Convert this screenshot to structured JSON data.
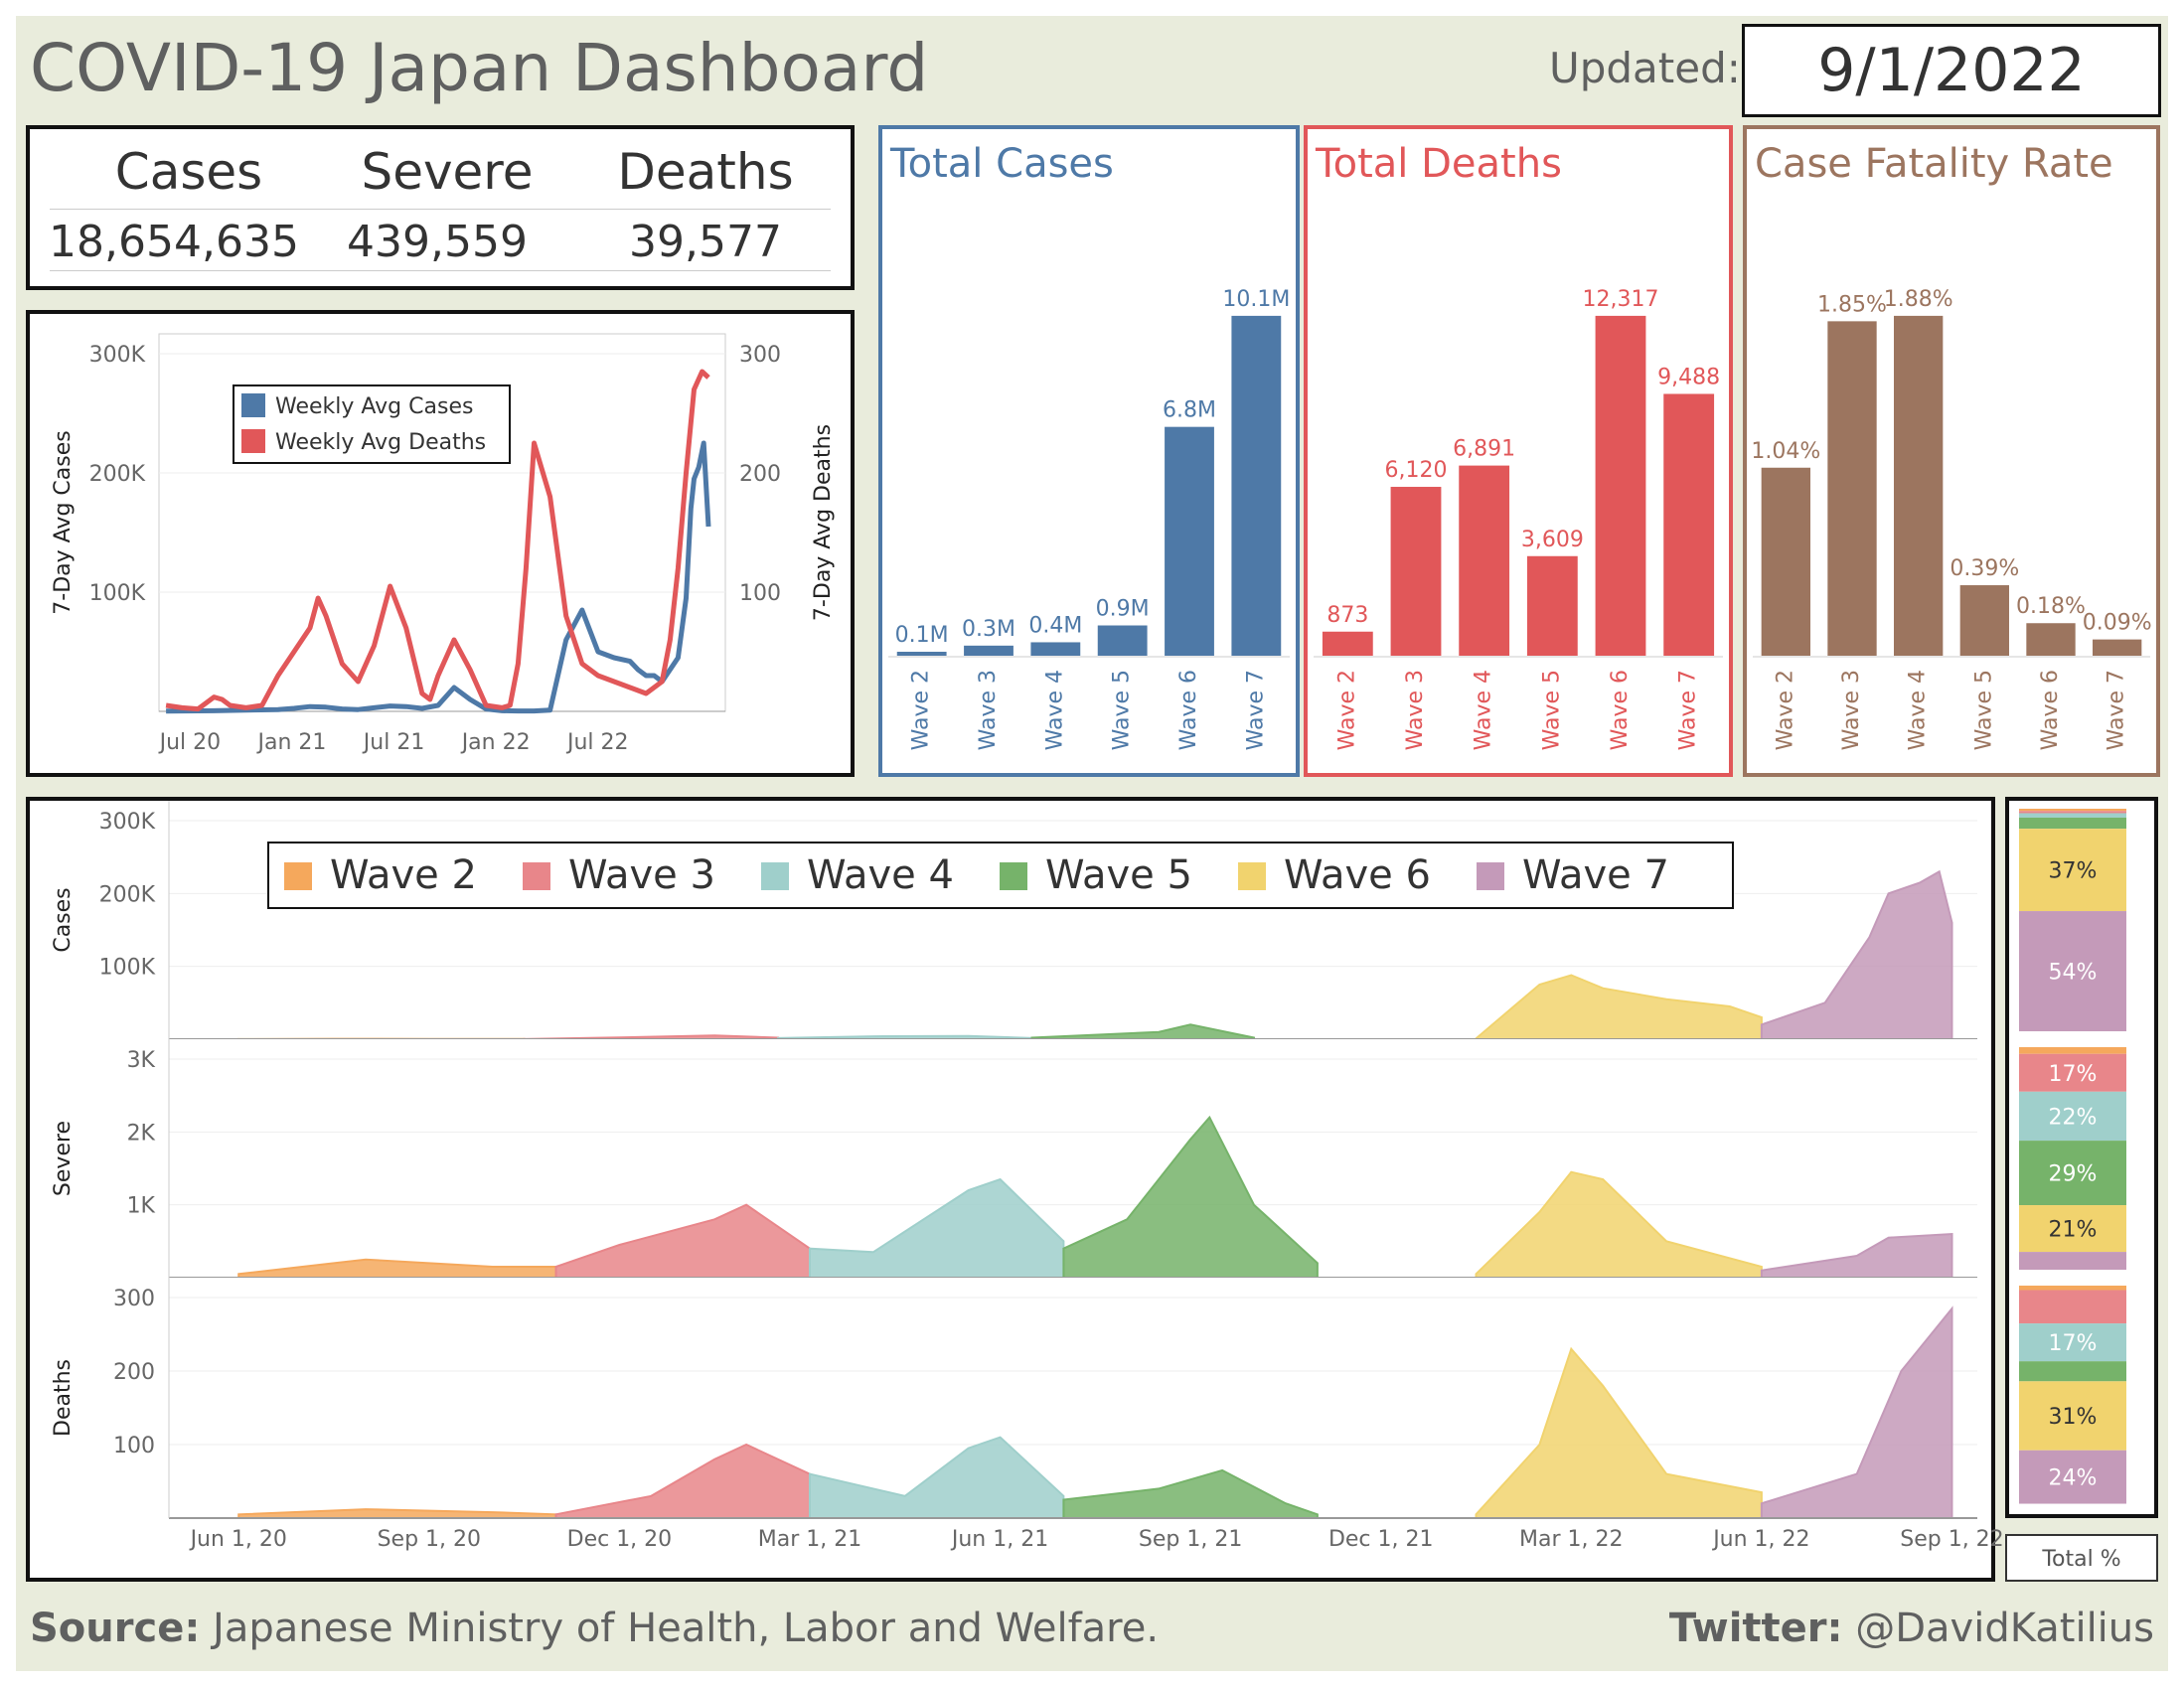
{
  "header": {
    "title": "COVID-19 Japan Dashboard",
    "updated_label": "Updated:",
    "updated_date": "9/1/2022"
  },
  "kpis": [
    {
      "label": "Cases",
      "value": "18,654,635"
    },
    {
      "label": "Severe",
      "value": "439,559"
    },
    {
      "label": "Deaths",
      "value": "39,577"
    }
  ],
  "colors": {
    "cases_blue": "#4e79a7",
    "deaths_red": "#e15759",
    "cfr_brown": "#9c755f",
    "background": "#e9ecdc",
    "wave2": "#f5a85c",
    "wave3": "#e8868a",
    "wave4": "#9fcfcb",
    "wave5": "#76b36a",
    "wave6": "#f1d36e",
    "wave7": "#c49ab9"
  },
  "chart_data": [
    {
      "id": "weekly-avg",
      "type": "line",
      "ylabel": "7-Day Avg Cases",
      "y2label": "7-Day Avg Deaths",
      "x_ticks": [
        "Jul 20",
        "Jan 21",
        "Jul 21",
        "Jan 22",
        "Jul 22"
      ],
      "y_ticks": [
        "100K",
        "200K",
        "300K"
      ],
      "y2_ticks": [
        "100",
        "200",
        "300"
      ],
      "ylim": [
        0,
        300000
      ],
      "y2lim": [
        0,
        300
      ],
      "legend": "top-left",
      "series": [
        {
          "name": "Weekly Avg Cases",
          "axis": "left",
          "color": "#4e79a7",
          "x_month_index": [
            0,
            3,
            5,
            7,
            8,
            9,
            10,
            11,
            12,
            13,
            14,
            15,
            16,
            17,
            18,
            19,
            20,
            21,
            22,
            23,
            24,
            25,
            26,
            27,
            28,
            29,
            29.5,
            30,
            30.5,
            31,
            32,
            32.5,
            32.8,
            33,
            33.3,
            33.6,
            33.9
          ],
          "values": [
            200,
            500,
            1000,
            1500,
            2500,
            4000,
            3500,
            2000,
            1500,
            3000,
            4500,
            4000,
            2500,
            5000,
            20000,
            10000,
            2000,
            500,
            300,
            300,
            1000,
            60000,
            85000,
            50000,
            45000,
            42000,
            35000,
            30000,
            30000,
            25000,
            45000,
            95000,
            170000,
            195000,
            205000,
            225000,
            155000
          ]
        },
        {
          "name": "Weekly Avg Deaths",
          "axis": "right",
          "color": "#e15759",
          "x_month_index": [
            0,
            1,
            2,
            3,
            3.5,
            4,
            5,
            6,
            7,
            8,
            9,
            9.5,
            10,
            11,
            12,
            13,
            14,
            15,
            16,
            16.5,
            17,
            18,
            19,
            20,
            21,
            21.5,
            22,
            22.5,
            23,
            24,
            25,
            26,
            27,
            28,
            29,
            30,
            31,
            31.5,
            32,
            32.5,
            33,
            33.5,
            33.9
          ],
          "values": [
            5,
            3,
            2,
            12,
            10,
            5,
            3,
            5,
            30,
            50,
            70,
            95,
            80,
            40,
            25,
            55,
            105,
            70,
            15,
            10,
            30,
            60,
            35,
            5,
            3,
            5,
            40,
            120,
            225,
            180,
            80,
            40,
            30,
            25,
            20,
            15,
            25,
            60,
            120,
            200,
            270,
            285,
            280
          ]
        }
      ]
    },
    {
      "id": "total-cases",
      "type": "bar",
      "title": "Total Cases",
      "categories": [
        "Wave 2",
        "Wave 3",
        "Wave 4",
        "Wave 5",
        "Wave 6",
        "Wave 7"
      ],
      "values": [
        0.1,
        0.3,
        0.4,
        0.9,
        6.8,
        10.1
      ],
      "data_labels": [
        "0.1M",
        "0.3M",
        "0.4M",
        "0.9M",
        "6.8M",
        "10.1M"
      ],
      "unit": "M",
      "color": "#4e79a7"
    },
    {
      "id": "total-deaths",
      "type": "bar",
      "title": "Total Deaths",
      "categories": [
        "Wave 2",
        "Wave 3",
        "Wave 4",
        "Wave 5",
        "Wave 6",
        "Wave 7"
      ],
      "values": [
        873,
        6120,
        6891,
        3609,
        12317,
        9488
      ],
      "data_labels": [
        "873",
        "6,120",
        "6,891",
        "3,609",
        "12,317",
        "9,488"
      ],
      "color": "#e15759"
    },
    {
      "id": "case-fatality-rate",
      "type": "bar",
      "title": "Case Fatality Rate",
      "categories": [
        "Wave 2",
        "Wave 3",
        "Wave 4",
        "Wave 5",
        "Wave 6",
        "Wave 7"
      ],
      "values": [
        1.04,
        1.85,
        1.88,
        0.39,
        0.18,
        0.09
      ],
      "data_labels": [
        "1.04%",
        "1.85%",
        "1.88%",
        "0.39%",
        "0.18%",
        "0.09%"
      ],
      "unit": "%",
      "color": "#9c755f"
    },
    {
      "id": "waves-area",
      "type": "area",
      "legend": [
        "Wave 2",
        "Wave 3",
        "Wave 4",
        "Wave 5",
        "Wave 6",
        "Wave 7"
      ],
      "legend_placement": "top",
      "x_ticks": [
        "Jun 1, 20",
        "Sep 1, 20",
        "Dec 1, 20",
        "Mar 1, 21",
        "Jun 1, 21",
        "Sep 1, 21",
        "Dec 1, 21",
        "Mar 1, 22",
        "Jun 1, 22",
        "Sep 1, 22"
      ],
      "panels": [
        {
          "ylabel": "Cases",
          "y_ticks": [
            "100K",
            "200K",
            "300K"
          ],
          "ylim": [
            0,
            300000
          ],
          "x_month_index": [
            0,
            3,
            6,
            9,
            12,
            15,
            18,
            21,
            24,
            27
          ],
          "waves": [
            {
              "name": "Wave 2",
              "start": 0,
              "end": 4.5,
              "points": [
                [
                  0,
                  100
                ],
                [
                  1.5,
                  500
                ],
                [
                  3,
                  400
                ],
                [
                  4.5,
                  300
                ]
              ]
            },
            {
              "name": "Wave 3",
              "start": 4.5,
              "end": 8.5,
              "points": [
                [
                  4.5,
                  300
                ],
                [
                  6,
                  2500
                ],
                [
                  7.5,
                  5000
                ],
                [
                  8.5,
                  2000
                ]
              ]
            },
            {
              "name": "Wave 4",
              "start": 8.5,
              "end": 12.5,
              "points": [
                [
                  8.5,
                  1500
                ],
                [
                  10,
                  4000
                ],
                [
                  11.5,
                  4500
                ],
                [
                  12.5,
                  1500
                ]
              ]
            },
            {
              "name": "Wave 5",
              "start": 12.5,
              "end": 16,
              "points": [
                [
                  12.5,
                  2000
                ],
                [
                  14.5,
                  10000
                ],
                [
                  15,
                  20000
                ],
                [
                  16,
                  2000
                ]
              ]
            },
            {
              "name": "Wave 6",
              "start": 19.5,
              "end": 24,
              "points": [
                [
                  19.5,
                  1000
                ],
                [
                  20.5,
                  75000
                ],
                [
                  21,
                  88000
                ],
                [
                  21.5,
                  70000
                ],
                [
                  22.5,
                  55000
                ],
                [
                  23.5,
                  45000
                ],
                [
                  24,
                  30000
                ]
              ]
            },
            {
              "name": "Wave 7",
              "start": 24,
              "end": 27,
              "points": [
                [
                  24,
                  20000
                ],
                [
                  25,
                  50000
                ],
                [
                  25.7,
                  140000
                ],
                [
                  26,
                  200000
                ],
                [
                  26.5,
                  215000
                ],
                [
                  26.8,
                  230000
                ],
                [
                  27,
                  160000
                ]
              ]
            }
          ]
        },
        {
          "ylabel": "Severe",
          "y_ticks": [
            "1K",
            "2K",
            "3K"
          ],
          "ylim": [
            0,
            3000
          ],
          "waves": [
            {
              "name": "Wave 2",
              "start": 0,
              "end": 5,
              "points": [
                [
                  0,
                  50
                ],
                [
                  2,
                  250
                ],
                [
                  4,
                  150
                ],
                [
                  5,
                  150
                ]
              ]
            },
            {
              "name": "Wave 3",
              "start": 5,
              "end": 9,
              "points": [
                [
                  5,
                  150
                ],
                [
                  6,
                  450
                ],
                [
                  7.5,
                  800
                ],
                [
                  8,
                  1000
                ],
                [
                  9,
                  400
                ]
              ]
            },
            {
              "name": "Wave 4",
              "start": 9,
              "end": 13,
              "points": [
                [
                  9,
                  400
                ],
                [
                  10,
                  350
                ],
                [
                  11.5,
                  1200
                ],
                [
                  12,
                  1350
                ],
                [
                  13,
                  500
                ]
              ]
            },
            {
              "name": "Wave 5",
              "start": 13,
              "end": 17,
              "points": [
                [
                  13,
                  400
                ],
                [
                  14,
                  800
                ],
                [
                  15,
                  1900
                ],
                [
                  15.3,
                  2200
                ],
                [
                  16,
                  1000
                ],
                [
                  17,
                  200
                ]
              ]
            },
            {
              "name": "Wave 6",
              "start": 19.5,
              "end": 24,
              "points": [
                [
                  19.5,
                  50
                ],
                [
                  20.5,
                  900
                ],
                [
                  21,
                  1450
                ],
                [
                  21.5,
                  1350
                ],
                [
                  22.5,
                  500
                ],
                [
                  24,
                  150
                ]
              ]
            },
            {
              "name": "Wave 7",
              "start": 24,
              "end": 27,
              "points": [
                [
                  24,
                  100
                ],
                [
                  25.5,
                  300
                ],
                [
                  26,
                  550
                ],
                [
                  27,
                  600
                ]
              ]
            }
          ]
        },
        {
          "ylabel": "Deaths",
          "y_ticks": [
            "100",
            "200",
            "300"
          ],
          "ylim": [
            0,
            300
          ],
          "waves": [
            {
              "name": "Wave 2",
              "start": 0,
              "end": 5,
              "points": [
                [
                  0,
                  5
                ],
                [
                  2,
                  12
                ],
                [
                  4,
                  8
                ],
                [
                  5,
                  5
                ]
              ]
            },
            {
              "name": "Wave 3",
              "start": 5,
              "end": 9,
              "points": [
                [
                  5,
                  5
                ],
                [
                  6.5,
                  30
                ],
                [
                  7.5,
                  80
                ],
                [
                  8,
                  100
                ],
                [
                  9,
                  60
                ]
              ]
            },
            {
              "name": "Wave 4",
              "start": 9,
              "end": 13,
              "points": [
                [
                  9,
                  60
                ],
                [
                  10.5,
                  30
                ],
                [
                  11.5,
                  95
                ],
                [
                  12,
                  110
                ],
                [
                  13,
                  30
                ]
              ]
            },
            {
              "name": "Wave 5",
              "start": 13,
              "end": 17,
              "points": [
                [
                  13,
                  25
                ],
                [
                  14.5,
                  40
                ],
                [
                  15.5,
                  65
                ],
                [
                  16.5,
                  20
                ],
                [
                  17,
                  5
                ]
              ]
            },
            {
              "name": "Wave 6",
              "start": 19.5,
              "end": 24,
              "points": [
                [
                  19.5,
                  5
                ],
                [
                  20.5,
                  100
                ],
                [
                  21,
                  230
                ],
                [
                  21.5,
                  180
                ],
                [
                  22.5,
                  60
                ],
                [
                  24,
                  35
                ]
              ]
            },
            {
              "name": "Wave 7",
              "start": 24,
              "end": 27,
              "points": [
                [
                  24,
                  20
                ],
                [
                  25.5,
                  60
                ],
                [
                  26.2,
                  200
                ],
                [
                  27,
                  285
                ]
              ]
            }
          ]
        }
      ]
    },
    {
      "id": "total-pct",
      "type": "bar",
      "label": "Total %",
      "stacks": [
        {
          "panel": "Cases",
          "segments": [
            {
              "wave": "Wave 2",
              "pct": 1
            },
            {
              "wave": "Wave 3",
              "pct": 1
            },
            {
              "wave": "Wave 4",
              "pct": 2
            },
            {
              "wave": "Wave 5",
              "pct": 5
            },
            {
              "wave": "Wave 6",
              "pct": 37,
              "label": "37%"
            },
            {
              "wave": "Wave 7",
              "pct": 54,
              "label": "54%"
            }
          ]
        },
        {
          "panel": "Severe",
          "segments": [
            {
              "wave": "Wave 2",
              "pct": 3
            },
            {
              "wave": "Wave 3",
              "pct": 17,
              "label": "17%"
            },
            {
              "wave": "Wave 4",
              "pct": 22,
              "label": "22%"
            },
            {
              "wave": "Wave 5",
              "pct": 29,
              "label": "29%"
            },
            {
              "wave": "Wave 6",
              "pct": 21,
              "label": "21%"
            },
            {
              "wave": "Wave 7",
              "pct": 8
            }
          ]
        },
        {
          "panel": "Deaths",
          "segments": [
            {
              "wave": "Wave 2",
              "pct": 2
            },
            {
              "wave": "Wave 3",
              "pct": 15
            },
            {
              "wave": "Wave 4",
              "pct": 17,
              "label": "17%"
            },
            {
              "wave": "Wave 5",
              "pct": 9
            },
            {
              "wave": "Wave 6",
              "pct": 31,
              "label": "31%"
            },
            {
              "wave": "Wave 7",
              "pct": 24,
              "label": "24%"
            }
          ]
        }
      ]
    }
  ],
  "footer": {
    "source_label": "Source:",
    "source_text": " Japanese Ministry of Health, Labor and Welfare.",
    "twitter_label": "Twitter:",
    "twitter_handle": " @DavidKatilius"
  }
}
